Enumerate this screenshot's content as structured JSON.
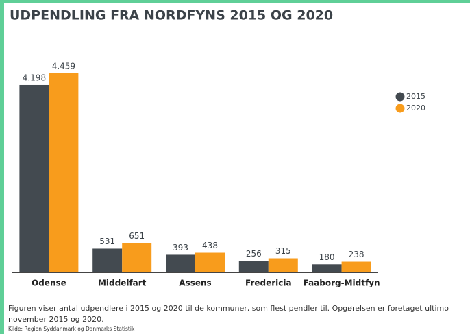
{
  "chart_data": {
    "type": "bar",
    "title": "UDPENDLING FRA NORDFYNS 2015 OG 2020",
    "categories": [
      "Odense",
      "Middelfart",
      "Assens",
      "Fredericia",
      "Faaborg-Midtfyn"
    ],
    "series": [
      {
        "name": "2015",
        "color": "#434a50",
        "values": [
          4198,
          531,
          393,
          256,
          180
        ],
        "value_labels": [
          "4.198",
          "531",
          "393",
          "256",
          "180"
        ]
      },
      {
        "name": "2020",
        "color": "#f89c1c",
        "values": [
          4459,
          651,
          438,
          315,
          238
        ],
        "value_labels": [
          "4.459",
          "651",
          "438",
          "315",
          "238"
        ]
      }
    ],
    "legend": "right",
    "caption": "Figuren viser antal udpendlere i 2015 og 2020 til de kommuner, som flest pendler til. Opgørelsen er foretaget ultimo november 2015 og 2020.",
    "source": "Kilde: Region Syddanmark og Danmarks Statistik"
  }
}
